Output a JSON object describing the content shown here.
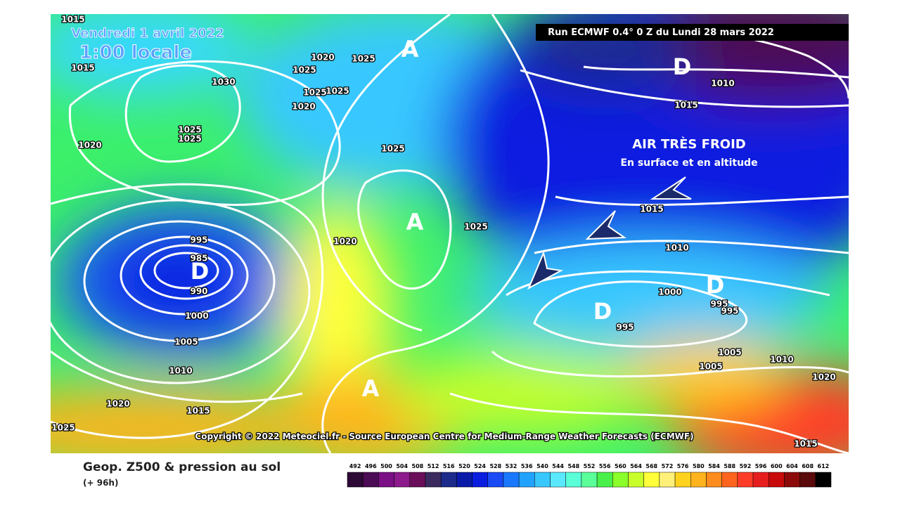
{
  "header": {
    "date": "Vendredi 1 avril 2022",
    "time": "1:00 locale",
    "run": "Run ECMWF 0.4° 0 Z du Lundi 28 mars 2022"
  },
  "annotation": {
    "title": "AIR TRÈS FROID",
    "subtitle": "En surface et en altitude"
  },
  "pressure_centers": [
    "A",
    "A",
    "A",
    "D",
    "D",
    "D",
    "D"
  ],
  "isobar_labels": [
    "1015",
    "1015",
    "1020",
    "1020",
    "1025",
    "1025",
    "1030",
    "1025",
    "1025",
    "1020",
    "1025",
    "1025",
    "1025",
    "1025",
    "1020",
    "995",
    "985",
    "990",
    "1000",
    "1005",
    "1010",
    "1020",
    "1015",
    "1025",
    "1010",
    "1015",
    "1015",
    "1010",
    "1000",
    "995",
    "995",
    "995",
    "1005",
    "1005",
    "1010",
    "1020",
    "1015"
  ],
  "copyright": "Copyright © 2022 Meteociel.fr - Source European Centre for Medium-Range Weather Forecasts (ECMWF)",
  "legend": {
    "title": "Geop. Z500 & pression au sol",
    "subtitle": "(+ 96h)",
    "scale": [
      {
        "value": 492,
        "color": "#2d0a36"
      },
      {
        "value": 496,
        "color": "#4b0b55"
      },
      {
        "value": 500,
        "color": "#7a0f86"
      },
      {
        "value": 504,
        "color": "#8c1a8c"
      },
      {
        "value": 508,
        "color": "#6a0e5a"
      },
      {
        "value": 512,
        "color": "#3a2a5e"
      },
      {
        "value": 516,
        "color": "#1c2a8a"
      },
      {
        "value": 520,
        "color": "#0a1aa8"
      },
      {
        "value": 524,
        "color": "#0a1ee0"
      },
      {
        "value": 528,
        "color": "#1a4af5"
      },
      {
        "value": 532,
        "color": "#1a78ff"
      },
      {
        "value": 536,
        "color": "#22a2ff"
      },
      {
        "value": 540,
        "color": "#38c8ff"
      },
      {
        "value": 544,
        "color": "#5ae8ff"
      },
      {
        "value": 548,
        "color": "#5affd8"
      },
      {
        "value": 552,
        "color": "#5aff9a"
      },
      {
        "value": 556,
        "color": "#4af04a"
      },
      {
        "value": 560,
        "color": "#8aff2a"
      },
      {
        "value": 564,
        "color": "#c8ff2a"
      },
      {
        "value": 568,
        "color": "#ffff3a"
      },
      {
        "value": 572,
        "color": "#fff07a"
      },
      {
        "value": 576,
        "color": "#ffd21e"
      },
      {
        "value": 580,
        "color": "#ffb41e"
      },
      {
        "value": 584,
        "color": "#ff8c1e"
      },
      {
        "value": 588,
        "color": "#ff641e"
      },
      {
        "value": 592,
        "color": "#ff3c28"
      },
      {
        "value": 596,
        "color": "#e61e1e"
      },
      {
        "value": 600,
        "color": "#c80a0a"
      },
      {
        "value": 604,
        "color": "#8c0a0a"
      },
      {
        "value": 608,
        "color": "#5a0a0a"
      },
      {
        "value": 612,
        "color": "#000000"
      }
    ]
  }
}
